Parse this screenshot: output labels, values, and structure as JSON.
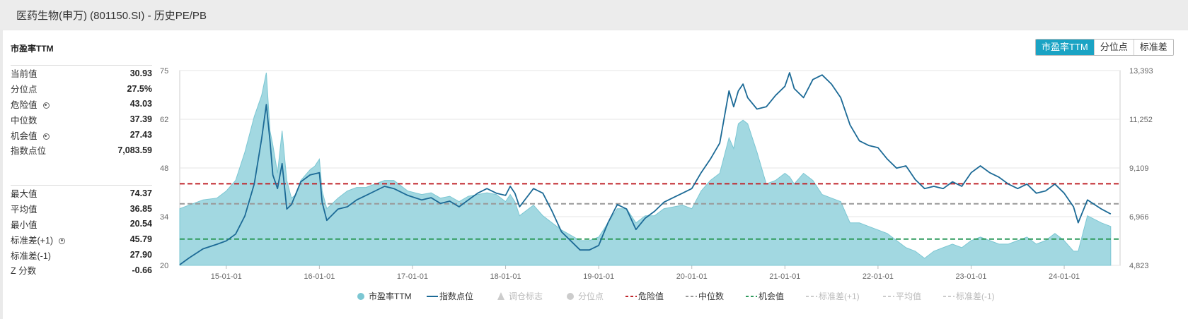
{
  "header": {
    "title": "医药生物(申万) (801150.SI) - 历史PE/PB"
  },
  "section": {
    "title": "市盈率TTM"
  },
  "tabs": [
    {
      "label": "市盈率TTM",
      "active": true
    },
    {
      "label": "分位点",
      "active": false
    },
    {
      "label": "标准差",
      "active": false
    }
  ],
  "stats_top": [
    {
      "label": "当前值",
      "value": "30.93",
      "gear": false
    },
    {
      "label": "分位点",
      "value": "27.5%",
      "gear": false
    },
    {
      "label": "危险值",
      "value": "43.03",
      "gear": true
    },
    {
      "label": "中位数",
      "value": "37.39",
      "gear": false
    },
    {
      "label": "机会值",
      "value": "27.43",
      "gear": true
    },
    {
      "label": "指数点位",
      "value": "7,083.59",
      "gear": false
    }
  ],
  "stats_bottom": [
    {
      "label": "最大值",
      "value": "74.37",
      "gear": false
    },
    {
      "label": "平均值",
      "value": "36.85",
      "gear": false
    },
    {
      "label": "最小值",
      "value": "20.54",
      "gear": false
    },
    {
      "label": "标准差(+1)",
      "value": "45.79",
      "gear": true
    },
    {
      "label": "标准差(-1)",
      "value": "27.90",
      "gear": false
    },
    {
      "label": "Z 分数",
      "value": "-0.66",
      "gear": false
    }
  ],
  "colors": {
    "pe_fill": "#9dd6df",
    "pe_stroke": "#7cc7d3",
    "index_line": "#1c6a96",
    "danger": "#c0252b",
    "median": "#999999",
    "opportunity": "#2e9a5c",
    "accent": "#1aa3c4"
  },
  "chart_data": {
    "type": "area",
    "y_left": {
      "ticks": [
        "75",
        "62",
        "48",
        "34",
        "20"
      ],
      "min": 20,
      "max": 75
    },
    "y_right": {
      "ticks": [
        "13,393",
        "11,252",
        "9,109",
        "6,966",
        "4,823"
      ],
      "min": 4823,
      "max": 13393
    },
    "x_ticks": [
      "15-01-01",
      "16-01-01",
      "17-01-01",
      "18-01-01",
      "19-01-01",
      "20-01-01",
      "21-01-01",
      "22-01-01",
      "23-01-01",
      "24-01-01"
    ],
    "x_range": [
      2014.5,
      2024.6
    ],
    "lines": {
      "danger": 43.03,
      "median": 37.39,
      "opportunity": 27.43
    },
    "series": [
      {
        "name": "市盈率TTM",
        "axis": "left",
        "points": [
          [
            2014.5,
            36
          ],
          [
            2014.6,
            37
          ],
          [
            2014.75,
            38.5
          ],
          [
            2014.9,
            39
          ],
          [
            2015.0,
            41
          ],
          [
            2015.1,
            44
          ],
          [
            2015.2,
            52
          ],
          [
            2015.3,
            62
          ],
          [
            2015.38,
            68
          ],
          [
            2015.43,
            74.4
          ],
          [
            2015.47,
            58
          ],
          [
            2015.5,
            54
          ],
          [
            2015.55,
            46
          ],
          [
            2015.6,
            58
          ],
          [
            2015.65,
            44
          ],
          [
            2015.7,
            39
          ],
          [
            2015.75,
            40
          ],
          [
            2015.8,
            44
          ],
          [
            2015.9,
            47
          ],
          [
            2015.95,
            48
          ],
          [
            2016.0,
            50
          ],
          [
            2016.03,
            41
          ],
          [
            2016.08,
            36
          ],
          [
            2016.2,
            39
          ],
          [
            2016.3,
            41
          ],
          [
            2016.4,
            42
          ],
          [
            2016.5,
            42
          ],
          [
            2016.6,
            43
          ],
          [
            2016.7,
            44
          ],
          [
            2016.8,
            44
          ],
          [
            2016.95,
            41
          ],
          [
            2017.1,
            40
          ],
          [
            2017.2,
            40.5
          ],
          [
            2017.3,
            39
          ],
          [
            2017.4,
            39.5
          ],
          [
            2017.5,
            38
          ],
          [
            2017.6,
            39.5
          ],
          [
            2017.7,
            40
          ],
          [
            2017.8,
            40.5
          ],
          [
            2017.9,
            40
          ],
          [
            2018.0,
            38
          ],
          [
            2018.05,
            40
          ],
          [
            2018.1,
            38
          ],
          [
            2018.15,
            34
          ],
          [
            2018.3,
            37
          ],
          [
            2018.4,
            34
          ],
          [
            2018.5,
            32
          ],
          [
            2018.6,
            30
          ],
          [
            2018.7,
            28.5
          ],
          [
            2018.8,
            27
          ],
          [
            2018.9,
            27
          ],
          [
            2019.0,
            28
          ],
          [
            2019.1,
            32
          ],
          [
            2019.2,
            36
          ],
          [
            2019.3,
            36
          ],
          [
            2019.4,
            32
          ],
          [
            2019.5,
            34
          ],
          [
            2019.6,
            34
          ],
          [
            2019.7,
            36
          ],
          [
            2019.8,
            36.5
          ],
          [
            2019.9,
            37
          ],
          [
            2020.0,
            36
          ],
          [
            2020.1,
            41
          ],
          [
            2020.2,
            44
          ],
          [
            2020.3,
            46
          ],
          [
            2020.4,
            56
          ],
          [
            2020.45,
            53
          ],
          [
            2020.5,
            60
          ],
          [
            2020.55,
            61
          ],
          [
            2020.6,
            60
          ],
          [
            2020.7,
            52
          ],
          [
            2020.8,
            43
          ],
          [
            2020.9,
            44
          ],
          [
            2021.0,
            46
          ],
          [
            2021.05,
            45
          ],
          [
            2021.1,
            43
          ],
          [
            2021.2,
            46
          ],
          [
            2021.3,
            44
          ],
          [
            2021.4,
            40
          ],
          [
            2021.5,
            39
          ],
          [
            2021.6,
            38
          ],
          [
            2021.7,
            32
          ],
          [
            2021.8,
            32
          ],
          [
            2021.9,
            31
          ],
          [
            2022.0,
            30
          ],
          [
            2022.1,
            29
          ],
          [
            2022.2,
            27
          ],
          [
            2022.3,
            25
          ],
          [
            2022.4,
            24
          ],
          [
            2022.5,
            22
          ],
          [
            2022.6,
            24
          ],
          [
            2022.7,
            25
          ],
          [
            2022.8,
            26
          ],
          [
            2022.9,
            25
          ],
          [
            2023.0,
            27
          ],
          [
            2023.1,
            28
          ],
          [
            2023.2,
            27
          ],
          [
            2023.3,
            26
          ],
          [
            2023.4,
            26
          ],
          [
            2023.5,
            27
          ],
          [
            2023.6,
            28
          ],
          [
            2023.7,
            26
          ],
          [
            2023.8,
            27
          ],
          [
            2023.9,
            29
          ],
          [
            2024.0,
            27
          ],
          [
            2024.1,
            24
          ],
          [
            2024.15,
            24
          ],
          [
            2024.25,
            34
          ],
          [
            2024.4,
            32
          ],
          [
            2024.5,
            31
          ]
        ]
      },
      {
        "name": "指数点位",
        "axis": "right",
        "points": [
          [
            2014.5,
            4850
          ],
          [
            2014.6,
            5150
          ],
          [
            2014.75,
            5550
          ],
          [
            2014.9,
            5750
          ],
          [
            2015.0,
            5900
          ],
          [
            2015.1,
            6200
          ],
          [
            2015.2,
            7000
          ],
          [
            2015.3,
            8400
          ],
          [
            2015.38,
            10400
          ],
          [
            2015.43,
            11900
          ],
          [
            2015.47,
            10300
          ],
          [
            2015.5,
            8800
          ],
          [
            2015.55,
            8200
          ],
          [
            2015.6,
            9300
          ],
          [
            2015.65,
            7300
          ],
          [
            2015.7,
            7500
          ],
          [
            2015.8,
            8500
          ],
          [
            2015.9,
            8800
          ],
          [
            2016.0,
            8900
          ],
          [
            2016.03,
            7600
          ],
          [
            2016.08,
            6800
          ],
          [
            2016.2,
            7300
          ],
          [
            2016.3,
            7400
          ],
          [
            2016.4,
            7700
          ],
          [
            2016.5,
            7900
          ],
          [
            2016.6,
            8100
          ],
          [
            2016.7,
            8300
          ],
          [
            2016.8,
            8200
          ],
          [
            2016.95,
            7900
          ],
          [
            2017.1,
            7700
          ],
          [
            2017.2,
            7800
          ],
          [
            2017.3,
            7550
          ],
          [
            2017.4,
            7650
          ],
          [
            2017.5,
            7400
          ],
          [
            2017.6,
            7700
          ],
          [
            2017.7,
            8000
          ],
          [
            2017.8,
            8200
          ],
          [
            2017.9,
            8000
          ],
          [
            2018.0,
            7900
          ],
          [
            2018.05,
            8300
          ],
          [
            2018.1,
            8000
          ],
          [
            2018.15,
            7400
          ],
          [
            2018.3,
            8200
          ],
          [
            2018.4,
            8000
          ],
          [
            2018.5,
            7200
          ],
          [
            2018.6,
            6300
          ],
          [
            2018.7,
            5900
          ],
          [
            2018.8,
            5500
          ],
          [
            2018.9,
            5500
          ],
          [
            2019.0,
            5700
          ],
          [
            2019.1,
            6700
          ],
          [
            2019.2,
            7500
          ],
          [
            2019.3,
            7300
          ],
          [
            2019.4,
            6400
          ],
          [
            2019.5,
            6900
          ],
          [
            2019.6,
            7200
          ],
          [
            2019.7,
            7600
          ],
          [
            2019.8,
            7800
          ],
          [
            2019.9,
            8000
          ],
          [
            2020.0,
            8200
          ],
          [
            2020.1,
            8900
          ],
          [
            2020.2,
            9500
          ],
          [
            2020.3,
            10200
          ],
          [
            2020.4,
            12500
          ],
          [
            2020.45,
            11800
          ],
          [
            2020.5,
            12500
          ],
          [
            2020.55,
            12800
          ],
          [
            2020.6,
            12200
          ],
          [
            2020.7,
            11700
          ],
          [
            2020.8,
            11800
          ],
          [
            2020.9,
            12300
          ],
          [
            2021.0,
            12700
          ],
          [
            2021.05,
            13300
          ],
          [
            2021.1,
            12600
          ],
          [
            2021.2,
            12200
          ],
          [
            2021.3,
            13000
          ],
          [
            2021.4,
            13200
          ],
          [
            2021.5,
            12800
          ],
          [
            2021.6,
            12200
          ],
          [
            2021.7,
            11000
          ],
          [
            2021.8,
            10300
          ],
          [
            2021.9,
            10100
          ],
          [
            2022.0,
            10000
          ],
          [
            2022.1,
            9500
          ],
          [
            2022.2,
            9100
          ],
          [
            2022.3,
            9200
          ],
          [
            2022.4,
            8600
          ],
          [
            2022.5,
            8200
          ],
          [
            2022.6,
            8300
          ],
          [
            2022.7,
            8200
          ],
          [
            2022.8,
            8500
          ],
          [
            2022.9,
            8300
          ],
          [
            2023.0,
            8900
          ],
          [
            2023.1,
            9200
          ],
          [
            2023.2,
            8900
          ],
          [
            2023.3,
            8700
          ],
          [
            2023.4,
            8400
          ],
          [
            2023.5,
            8200
          ],
          [
            2023.6,
            8400
          ],
          [
            2023.7,
            8000
          ],
          [
            2023.8,
            8100
          ],
          [
            2023.9,
            8400
          ],
          [
            2024.0,
            8000
          ],
          [
            2024.1,
            7400
          ],
          [
            2024.15,
            6700
          ],
          [
            2024.25,
            7700
          ],
          [
            2024.4,
            7300
          ],
          [
            2024.5,
            7083
          ]
        ]
      }
    ],
    "legend": [
      {
        "label": "市盈率TTM",
        "symbol": "circle",
        "color": "#7cc7d3",
        "enabled": true
      },
      {
        "label": "指数点位",
        "symbol": "line",
        "color": "#1c6a96",
        "enabled": true
      },
      {
        "label": "调仓标志",
        "symbol": "triangle",
        "color": "#cccccc",
        "enabled": false
      },
      {
        "label": "分位点",
        "symbol": "circle",
        "color": "#cccccc",
        "enabled": false
      },
      {
        "label": "危险值",
        "symbol": "dash",
        "color": "#c0252b",
        "enabled": true
      },
      {
        "label": "中位数",
        "symbol": "dash",
        "color": "#999999",
        "enabled": true
      },
      {
        "label": "机会值",
        "symbol": "dash",
        "color": "#2e9a5c",
        "enabled": true
      },
      {
        "label": "标准差(+1)",
        "symbol": "dash",
        "color": "#cccccc",
        "enabled": false
      },
      {
        "label": "平均值",
        "symbol": "dash",
        "color": "#cccccc",
        "enabled": false
      },
      {
        "label": "标准差(-1)",
        "symbol": "dash",
        "color": "#cccccc",
        "enabled": false
      }
    ]
  }
}
